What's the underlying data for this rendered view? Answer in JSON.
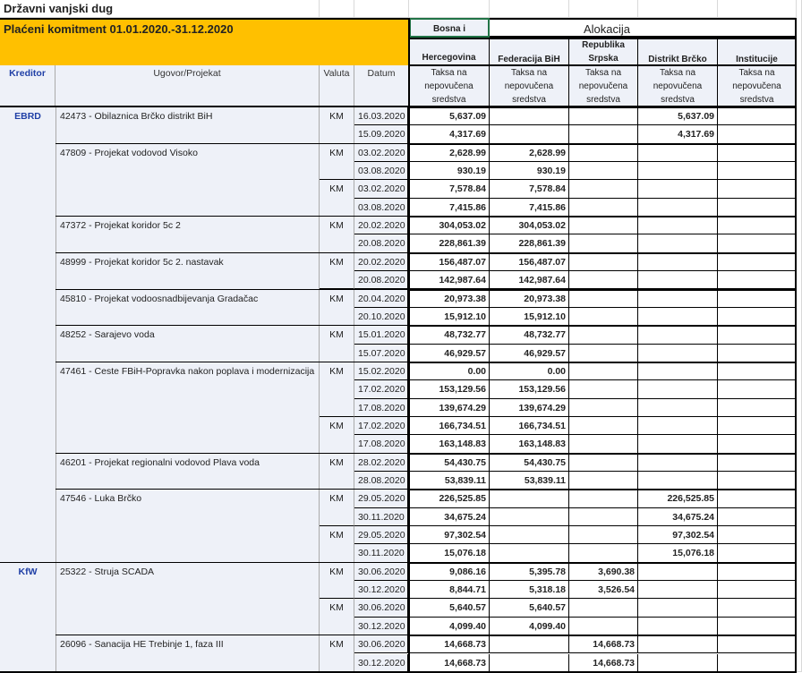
{
  "sheet_title": "Državni vanjski dug",
  "banner": "Plaćeni komitment  01.01.2020.-31.12.2020",
  "allocation_label": "Alokacija",
  "headers": {
    "kreditor": "Kreditor",
    "ugovor": "Ugovor/Projekat",
    "valuta": "Valuta",
    "datum": "Datum",
    "bih_top": "Bosna i",
    "bih_bottom": "Hercegovina",
    "entities": [
      "Federacija BiH",
      "Republika Srpska",
      "Distrikt Brčko",
      "Institucije"
    ],
    "entity_lines": [
      [
        "Federacija BiH"
      ],
      [
        "Republika",
        "Srpska"
      ],
      [
        "Distrikt Brčko"
      ],
      [
        "Institucije"
      ]
    ],
    "taksa": "Taksa na nepovučena sredstva",
    "taksa_lines": [
      "Taksa na",
      "nepovučena",
      "sredstva"
    ]
  },
  "colors": {
    "banner": "#ffc000",
    "header_bg": "#eef1f8",
    "creditor_text": "#1f3fa6",
    "selection": "#217346"
  },
  "creditors": [
    {
      "name": "EBRD",
      "projects": [
        {
          "name": "42473 - Obilaznica Brčko distrikt BiH",
          "groups": [
            {
              "currency": "KM",
              "rows": [
                {
                  "date": "16.03.2020",
                  "values": [
                    "5,637.09",
                    "",
                    "",
                    "5,637.09",
                    ""
                  ]
                },
                {
                  "date": "15.09.2020",
                  "values": [
                    "4,317.69",
                    "",
                    "",
                    "4,317.69",
                    ""
                  ]
                }
              ]
            }
          ]
        },
        {
          "name": "47809 - Projekat vodovod Visoko",
          "groups": [
            {
              "currency": "KM",
              "rows": [
                {
                  "date": "03.02.2020",
                  "values": [
                    "2,628.99",
                    "2,628.99",
                    "",
                    "",
                    ""
                  ]
                },
                {
                  "date": "03.08.2020",
                  "values": [
                    "930.19",
                    "930.19",
                    "",
                    "",
                    ""
                  ]
                }
              ]
            },
            {
              "currency": "KM",
              "rows": [
                {
                  "date": "03.02.2020",
                  "values": [
                    "7,578.84",
                    "7,578.84",
                    "",
                    "",
                    ""
                  ]
                },
                {
                  "date": "03.08.2020",
                  "values": [
                    "7,415.86",
                    "7,415.86",
                    "",
                    "",
                    ""
                  ]
                }
              ]
            }
          ]
        },
        {
          "name": "47372 - Projekat koridor 5c 2",
          "groups": [
            {
              "currency": "KM",
              "rows": [
                {
                  "date": "20.02.2020",
                  "values": [
                    "304,053.02",
                    "304,053.02",
                    "",
                    "",
                    ""
                  ]
                },
                {
                  "date": "20.08.2020",
                  "values": [
                    "228,861.39",
                    "228,861.39",
                    "",
                    "",
                    ""
                  ]
                }
              ]
            }
          ]
        },
        {
          "name": "48999 - Projekat koridor 5c 2. nastavak",
          "groups": [
            {
              "currency": "KM",
              "rows": [
                {
                  "date": "20.02.2020",
                  "values": [
                    "156,487.07",
                    "156,487.07",
                    "",
                    "",
                    ""
                  ]
                },
                {
                  "date": "20.08.2020",
                  "values": [
                    "142,987.64",
                    "142,987.64",
                    "",
                    "",
                    ""
                  ]
                }
              ]
            }
          ]
        },
        {
          "name": "45810 - Projekat vodoosnadbijevanja Gradačac",
          "groups": [
            {
              "currency": "KM",
              "rows": [
                {
                  "date": "20.04.2020",
                  "values": [
                    "20,973.38",
                    "20,973.38",
                    "",
                    "",
                    ""
                  ]
                },
                {
                  "date": "20.10.2020",
                  "values": [
                    "15,912.10",
                    "15,912.10",
                    "",
                    "",
                    ""
                  ]
                }
              ]
            }
          ]
        },
        {
          "name": "48252 - Sarajevo voda",
          "groups": [
            {
              "currency": "KM",
              "rows": [
                {
                  "date": "15.01.2020",
                  "values": [
                    "48,732.77",
                    "48,732.77",
                    "",
                    "",
                    ""
                  ]
                },
                {
                  "date": "15.07.2020",
                  "values": [
                    "46,929.57",
                    "46,929.57",
                    "",
                    "",
                    ""
                  ]
                }
              ]
            }
          ]
        },
        {
          "name": "47461 - Ceste FBiH-Popravka nakon poplava i modernizacija",
          "groups": [
            {
              "currency": "KM",
              "rows": [
                {
                  "date": "15.02.2020",
                  "values": [
                    "0.00",
                    "0.00",
                    "",
                    "",
                    ""
                  ]
                },
                {
                  "date": "17.02.2020",
                  "values": [
                    "153,129.56",
                    "153,129.56",
                    "",
                    "",
                    ""
                  ]
                },
                {
                  "date": "17.08.2020",
                  "values": [
                    "139,674.29",
                    "139,674.29",
                    "",
                    "",
                    ""
                  ]
                }
              ]
            },
            {
              "currency": "KM",
              "rows": [
                {
                  "date": "17.02.2020",
                  "values": [
                    "166,734.51",
                    "166,734.51",
                    "",
                    "",
                    ""
                  ]
                },
                {
                  "date": "17.08.2020",
                  "values": [
                    "163,148.83",
                    "163,148.83",
                    "",
                    "",
                    ""
                  ]
                }
              ]
            }
          ]
        },
        {
          "name": "46201 - Projekat regionalni vodovod Plava voda",
          "groups": [
            {
              "currency": "KM",
              "rows": [
                {
                  "date": "28.02.2020",
                  "values": [
                    "54,430.75",
                    "54,430.75",
                    "",
                    "",
                    ""
                  ]
                },
                {
                  "date": "28.08.2020",
                  "values": [
                    "53,839.11",
                    "53,839.11",
                    "",
                    "",
                    ""
                  ]
                }
              ]
            }
          ]
        },
        {
          "name": "47546 - Luka Brčko",
          "groups": [
            {
              "currency": "KM",
              "rows": [
                {
                  "date": "29.05.2020",
                  "values": [
                    "226,525.85",
                    "",
                    "",
                    "226,525.85",
                    ""
                  ]
                },
                {
                  "date": "30.11.2020",
                  "values": [
                    "34,675.24",
                    "",
                    "",
                    "34,675.24",
                    ""
                  ]
                }
              ]
            },
            {
              "currency": "KM",
              "rows": [
                {
                  "date": "29.05.2020",
                  "values": [
                    "97,302.54",
                    "",
                    "",
                    "97,302.54",
                    ""
                  ]
                },
                {
                  "date": "30.11.2020",
                  "values": [
                    "15,076.18",
                    "",
                    "",
                    "15,076.18",
                    ""
                  ]
                }
              ]
            }
          ]
        }
      ]
    },
    {
      "name": "KfW",
      "projects": [
        {
          "name": "25322 - Struja SCADA",
          "groups": [
            {
              "currency": "KM",
              "rows": [
                {
                  "date": "30.06.2020",
                  "values": [
                    "9,086.16",
                    "5,395.78",
                    "3,690.38",
                    "",
                    ""
                  ]
                },
                {
                  "date": "30.12.2020",
                  "values": [
                    "8,844.71",
                    "5,318.18",
                    "3,526.54",
                    "",
                    ""
                  ]
                }
              ]
            },
            {
              "currency": "KM",
              "rows": [
                {
                  "date": "30.06.2020",
                  "values": [
                    "5,640.57",
                    "5,640.57",
                    "",
                    "",
                    ""
                  ]
                },
                {
                  "date": "30.12.2020",
                  "values": [
                    "4,099.40",
                    "4,099.40",
                    "",
                    "",
                    ""
                  ]
                }
              ]
            }
          ]
        },
        {
          "name": "26096 - Sanacija HE Trebinje 1, faza III",
          "groups": [
            {
              "currency": "KM",
              "rows": [
                {
                  "date": "30.06.2020",
                  "values": [
                    "14,668.73",
                    "",
                    "14,668.73",
                    "",
                    ""
                  ]
                },
                {
                  "date": "30.12.2020",
                  "values": [
                    "14,668.73",
                    "",
                    "14,668.73",
                    "",
                    ""
                  ]
                }
              ]
            }
          ]
        }
      ]
    }
  ]
}
